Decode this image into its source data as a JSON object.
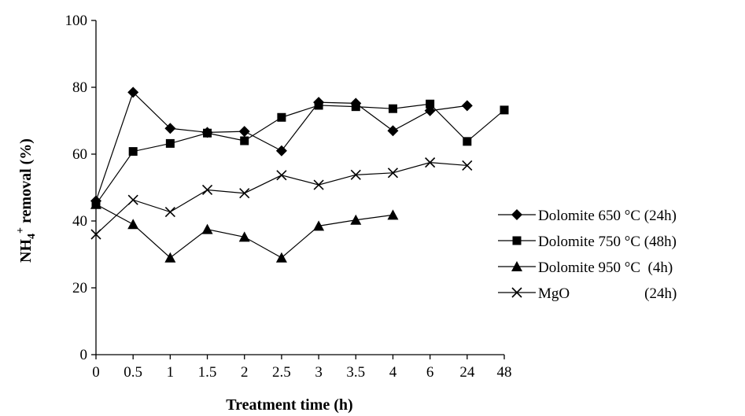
{
  "chart_data": {
    "type": "line",
    "title": "",
    "xlabel": "Treatment time (h)",
    "ylabel": {
      "prefix": "NH",
      "sub": "4",
      "sup": "+",
      "suffix": " removal (%)"
    },
    "categories": [
      "0",
      "0.5",
      "1",
      "1.5",
      "2",
      "2.5",
      "3",
      "3.5",
      "4",
      "6",
      "24",
      "48"
    ],
    "ylim": [
      0,
      100
    ],
    "yticks": [
      "0",
      "20",
      "40",
      "60",
      "80",
      "100"
    ],
    "grid": false,
    "legend_position": "right",
    "series": [
      {
        "name": "Dolomite 650 °C (24h)",
        "marker": "diamond",
        "values": [
          46,
          78.5,
          67.7,
          66.5,
          66.8,
          61,
          75.5,
          75.2,
          67,
          73,
          74.5,
          null
        ]
      },
      {
        "name": "Dolomite 750 °C (48h)",
        "marker": "square",
        "values": [
          45,
          60.8,
          63.2,
          66.3,
          64,
          71,
          74.6,
          74.2,
          73.6,
          75,
          63.8,
          73.2
        ]
      },
      {
        "name": "Dolomite 950 °C  (4h)",
        "marker": "triangle",
        "values": [
          45,
          39,
          29,
          37.5,
          35.2,
          29,
          38.5,
          40.3,
          41.8,
          null,
          null,
          null
        ]
      },
      {
        "name": "MgO                    (24h)",
        "marker": "cross",
        "values": [
          36,
          46.3,
          42.7,
          49.3,
          48.3,
          53.7,
          50.8,
          53.8,
          54.4,
          57.5,
          56.6,
          null
        ]
      }
    ]
  }
}
